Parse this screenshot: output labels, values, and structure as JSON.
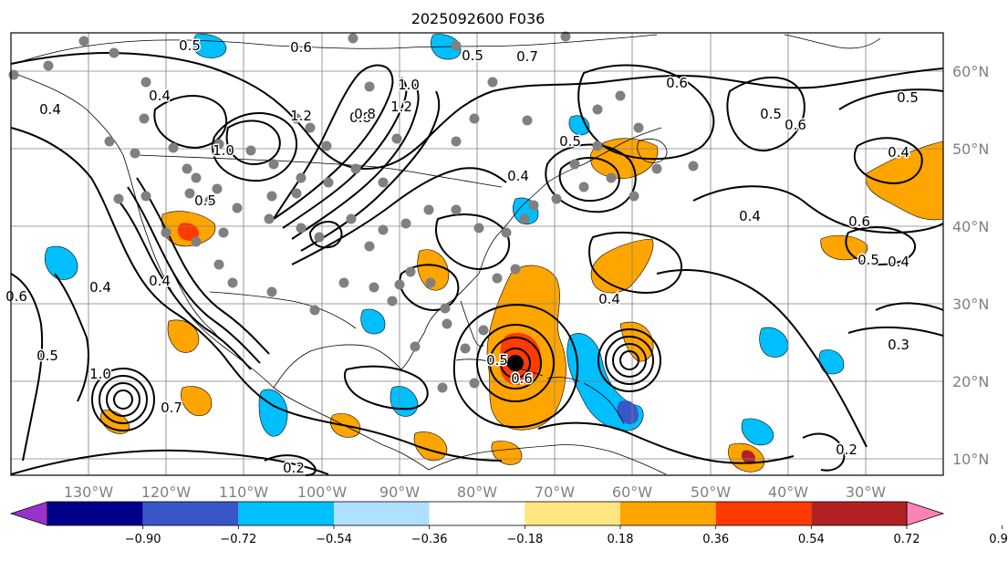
{
  "title": "2025092600 F036",
  "lat_labels": [
    "60°N",
    "50°N",
    "40°N",
    "30°N",
    "20°N",
    "10°N"
  ],
  "lon_labels": [
    "130°W",
    "120°W",
    "110°W",
    "100°W",
    "90°W",
    "80°W",
    "70°W",
    "60°W",
    "50°W",
    "40°W",
    "30°W"
  ],
  "colorbar": {
    "ticks": [
      "−0.90",
      "−0.72",
      "−0.54",
      "−0.36",
      "−0.18",
      "0.18",
      "0.36",
      "0.54",
      "0.72",
      "0.90"
    ],
    "colors": [
      "#9932cc",
      "#00008b",
      "#3a57c8",
      "#00bfff",
      "#b0e0ff",
      "#ffffff",
      "#ffe680",
      "#ffa500",
      "#ff3a00",
      "#b22222",
      "#ff82b4"
    ]
  },
  "contour_labels": [
    "0.5",
    "0.6",
    "0.5",
    "0.7",
    "0.4",
    "0.4",
    "1.0",
    "1.2",
    "0.8",
    "0.5",
    "1.0",
    "1.2",
    "0.8",
    "0.5",
    "0.4",
    "0.4",
    "0.6",
    "0.5",
    "0.6",
    "0.5",
    "0.4",
    "0.6",
    "0.4",
    "0.5",
    "0.4",
    "0.3",
    "0.2",
    "0.2",
    "0.7",
    "0.5",
    "1.0",
    "0.4",
    "0.4",
    "0.6",
    "0.5",
    "0.6"
  ],
  "storm_marker_color": "#000000",
  "station_dot_color": "#808080"
}
